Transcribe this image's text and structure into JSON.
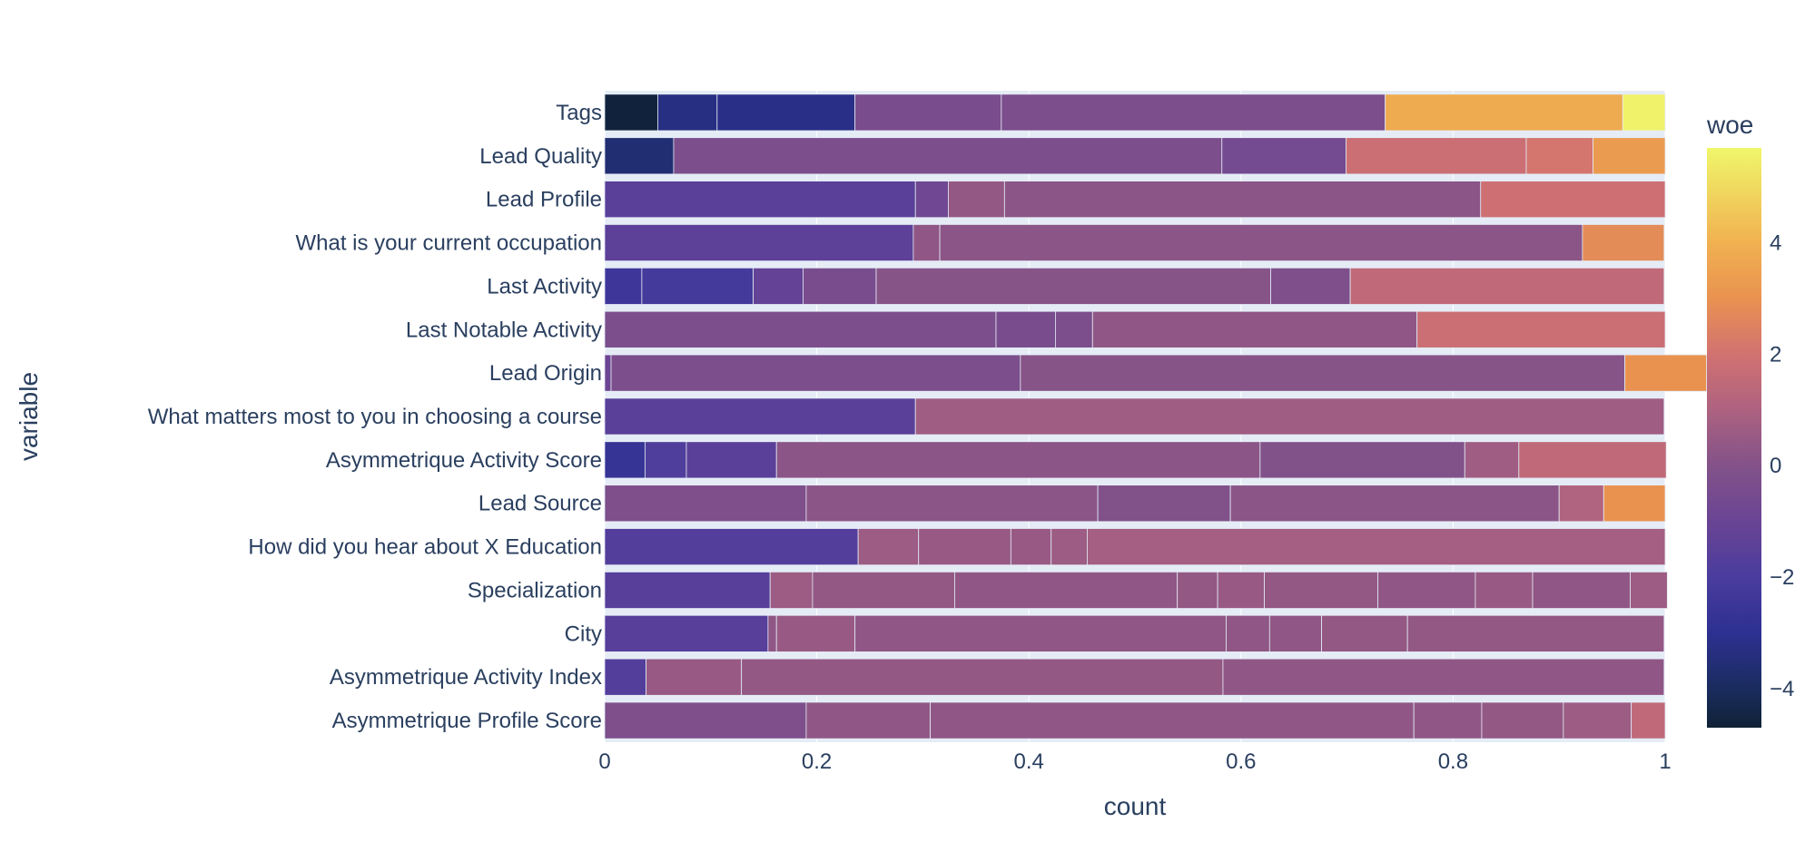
{
  "chart_data": {
    "type": "bar",
    "orientation": "horizontal",
    "barmode": "stack",
    "xlabel": "count",
    "ylabel": "variable",
    "xlim": [
      0,
      1
    ],
    "x_ticks": [
      "0",
      "0.2",
      "0.4",
      "0.6",
      "0.8",
      "1"
    ],
    "grid": true,
    "colorbar": {
      "title": "woe",
      "min": -4.7,
      "max": 5.7,
      "tick_values": [
        4,
        2,
        0,
        -2,
        -4
      ],
      "tick_labels": [
        "4",
        "2",
        "0",
        "−2",
        "−4"
      ],
      "colorscale": [
        "#0d0887",
        "#46039f",
        "#7201a8",
        "#9c179e",
        "#bd3786",
        "#d8576b",
        "#ed7953",
        "#fb9f3a",
        "#fdca26",
        "#f0f921"
      ],
      "observed_colors": [
        [
          -4.7,
          "#0f2236"
        ],
        [
          -4.0,
          "#1a2c5e"
        ],
        [
          -3.0,
          "#2d3091"
        ],
        [
          -2.0,
          "#4a3c9e"
        ],
        [
          -1.0,
          "#6a4494"
        ],
        [
          0.0,
          "#835289"
        ],
        [
          1.0,
          "#ad6280"
        ],
        [
          2.0,
          "#d27271"
        ],
        [
          3.0,
          "#e99250"
        ],
        [
          4.0,
          "#f1b150"
        ],
        [
          5.7,
          "#f0f76b"
        ]
      ]
    },
    "rows": [
      {
        "label": "Tags",
        "segments": [
          {
            "share": 0.05,
            "woe": -4.6
          },
          {
            "share": 0.056,
            "woe": -3.3
          },
          {
            "share": 0.13,
            "woe": -3.2
          },
          {
            "share": 0.138,
            "woe": -0.4
          },
          {
            "share": 0.362,
            "woe": -0.3
          },
          {
            "share": 0.224,
            "woe": 3.8
          },
          {
            "share": 0.04,
            "woe": 5.6
          }
        ]
      },
      {
        "label": "Lead Quality",
        "segments": [
          {
            "share": 0.065,
            "woe": -3.6
          },
          {
            "share": 0.517,
            "woe": -0.3
          },
          {
            "share": 0.117,
            "woe": -0.6
          },
          {
            "share": 0.17,
            "woe": 1.8
          },
          {
            "share": 0.063,
            "woe": 2.1
          },
          {
            "share": 0.068,
            "woe": 3.3
          }
        ]
      },
      {
        "label": "Lead Profile",
        "segments": [
          {
            "share": 0.293,
            "woe": -1.5
          },
          {
            "share": 0.031,
            "woe": -0.8
          },
          {
            "share": 0.053,
            "woe": 0.4
          },
          {
            "share": 0.449,
            "woe": 0.2
          },
          {
            "share": 0.174,
            "woe": 1.9
          }
        ]
      },
      {
        "label": "What is your current occupation",
        "segments": [
          {
            "share": 0.291,
            "woe": -1.4
          },
          {
            "share": 0.025,
            "woe": 0.3
          },
          {
            "share": 0.606,
            "woe": 0.2
          },
          {
            "share": 0.077,
            "woe": 2.8
          }
        ]
      },
      {
        "label": "Last Activity",
        "segments": [
          {
            "share": 0.035,
            "woe": -2.4
          },
          {
            "share": 0.105,
            "woe": -2.2
          },
          {
            "share": 0.047,
            "woe": -1.2
          },
          {
            "share": 0.069,
            "woe": -0.4
          },
          {
            "share": 0.372,
            "woe": 0.1
          },
          {
            "share": 0.075,
            "woe": -0.2
          },
          {
            "share": 0.296,
            "woe": 1.5
          }
        ]
      },
      {
        "label": "Last Notable Activity",
        "segments": [
          {
            "share": 0.369,
            "woe": -0.3
          },
          {
            "share": 0.056,
            "woe": -0.4
          },
          {
            "share": 0.035,
            "woe": -0.3
          },
          {
            "share": 0.306,
            "woe": 0.3
          },
          {
            "share": 0.234,
            "woe": 1.8
          }
        ]
      },
      {
        "label": "Lead Origin",
        "segments": [
          {
            "share": 0.006,
            "woe": -0.9
          },
          {
            "share": 0.386,
            "woe": -0.3
          },
          {
            "share": 0.57,
            "woe": 0.1
          },
          {
            "share": 0.077,
            "woe": 3.0
          }
        ]
      },
      {
        "label": "What matters most to you in choosing a course",
        "segments": [
          {
            "share": 0.293,
            "woe": -1.5
          },
          {
            "share": 0.706,
            "woe": 0.7
          }
        ]
      },
      {
        "label": "Asymmetrique Activity Score",
        "segments": [
          {
            "share": 0.038,
            "woe": -2.7
          },
          {
            "share": 0.039,
            "woe": -1.8
          },
          {
            "share": 0.085,
            "woe": -1.5
          },
          {
            "share": 0.456,
            "woe": 0.2
          },
          {
            "share": 0.193,
            "woe": -0.1
          },
          {
            "share": 0.051,
            "woe": 0.7
          },
          {
            "share": 0.139,
            "woe": 1.5
          }
        ]
      },
      {
        "label": "Lead Source",
        "segments": [
          {
            "share": 0.19,
            "woe": -0.2
          },
          {
            "share": 0.275,
            "woe": 0.2
          },
          {
            "share": 0.125,
            "woe": -0.1
          },
          {
            "share": 0.31,
            "woe": 0.2
          },
          {
            "share": 0.042,
            "woe": 1.1
          },
          {
            "share": 0.058,
            "woe": 3.0
          }
        ]
      },
      {
        "label": "How did you hear about X Education",
        "segments": [
          {
            "share": 0.239,
            "woe": -1.7
          },
          {
            "share": 0.057,
            "woe": 0.6
          },
          {
            "share": 0.087,
            "woe": 0.5
          },
          {
            "share": 0.038,
            "woe": 0.5
          },
          {
            "share": 0.034,
            "woe": 0.6
          },
          {
            "share": 0.545,
            "woe": 0.8
          }
        ]
      },
      {
        "label": "Specialization",
        "segments": [
          {
            "share": 0.156,
            "woe": -1.6
          },
          {
            "share": 0.04,
            "woe": 0.6
          },
          {
            "share": 0.134,
            "woe": 0.4
          },
          {
            "share": 0.21,
            "woe": 0.3
          },
          {
            "share": 0.038,
            "woe": 0.4
          },
          {
            "share": 0.044,
            "woe": 0.5
          },
          {
            "share": 0.107,
            "woe": 0.4
          },
          {
            "share": 0.092,
            "woe": 0.3
          },
          {
            "share": 0.054,
            "woe": 0.5
          },
          {
            "share": 0.092,
            "woe": 0.3
          },
          {
            "share": 0.035,
            "woe": 0.6
          }
        ]
      },
      {
        "label": "City",
        "segments": [
          {
            "share": 0.154,
            "woe": -1.6
          },
          {
            "share": 0.008,
            "woe": 0.3
          },
          {
            "share": 0.074,
            "woe": 0.5
          },
          {
            "share": 0.35,
            "woe": 0.3
          },
          {
            "share": 0.041,
            "woe": 0.3
          },
          {
            "share": 0.049,
            "woe": 0.3
          },
          {
            "share": 0.081,
            "woe": 0.4
          },
          {
            "share": 0.242,
            "woe": 0.4
          }
        ]
      },
      {
        "label": "Asymmetrique Activity Index",
        "segments": [
          {
            "share": 0.039,
            "woe": -1.7
          },
          {
            "share": 0.09,
            "woe": 0.5
          },
          {
            "share": 0.454,
            "woe": 0.4
          },
          {
            "share": 0.416,
            "woe": 0.3
          }
        ]
      },
      {
        "label": "Asymmetrique Profile Score",
        "segments": [
          {
            "share": 0.19,
            "woe": -0.2
          },
          {
            "share": 0.117,
            "woe": 0.3
          },
          {
            "share": 0.456,
            "woe": 0.3
          },
          {
            "share": 0.064,
            "woe": 0.3
          },
          {
            "share": 0.077,
            "woe": 0.4
          },
          {
            "share": 0.064,
            "woe": 0.6
          },
          {
            "share": 0.032,
            "woe": 1.5
          }
        ]
      }
    ]
  }
}
